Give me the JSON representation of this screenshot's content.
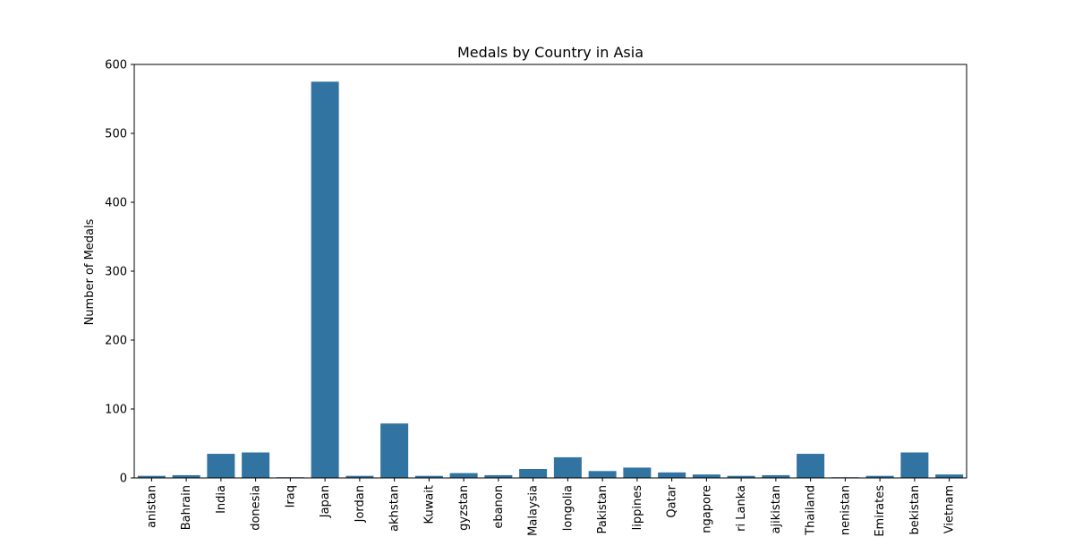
{
  "chart_data": {
    "type": "bar",
    "title": "Medals by Country in Asia",
    "xlabel": "",
    "ylabel": "Number of Medals",
    "ylim": [
      0,
      600
    ],
    "yticks": [
      0,
      100,
      200,
      300,
      400,
      500,
      600
    ],
    "bar_color": "#3274a1",
    "grid": false,
    "categories": [
      "anistan",
      "Bahrain",
      "India",
      "donesia",
      "Iraq",
      "Japan",
      "Jordan",
      "akhstan",
      "Kuwait",
      "gyzstan",
      "ebanon",
      "Malaysia",
      "longolia",
      "Pakistan",
      "lippines",
      "Qatar",
      "ngapore",
      "ri Lanka",
      "ajikistan",
      "Thailand",
      "nenistan",
      "Emirates",
      "bekistan",
      "Vietnam"
    ],
    "values": [
      3,
      4,
      35,
      37,
      1,
      575,
      3,
      79,
      3,
      7,
      4,
      13,
      30,
      10,
      15,
      8,
      5,
      3,
      4,
      35,
      1,
      3,
      37,
      5
    ]
  }
}
